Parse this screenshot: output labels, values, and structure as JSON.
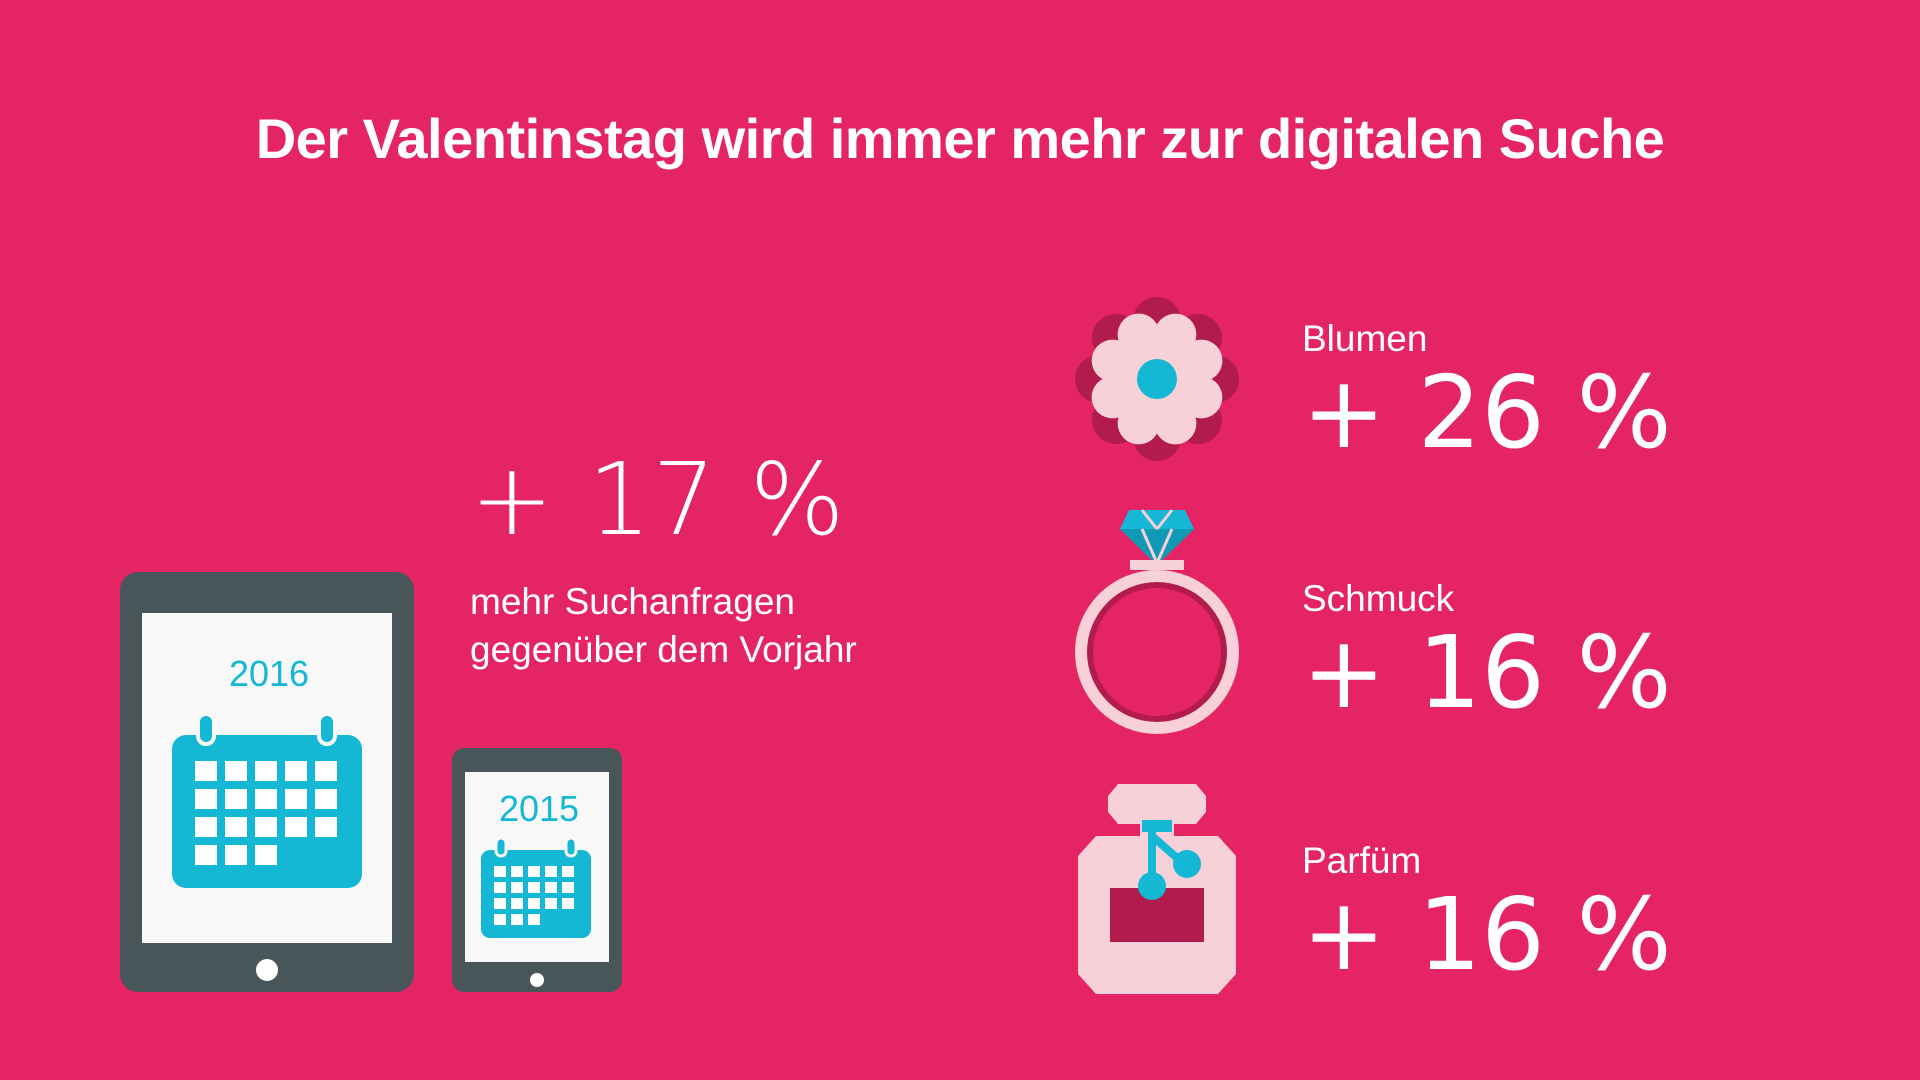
{
  "title": "Der Valentinstag wird immer mehr zur digitalen Suche",
  "colors": {
    "background": "#e52466",
    "accent_cyan": "#14b7d4",
    "device_dark": "#485559",
    "light_pink": "#f8d0d8",
    "dark_pink": "#b21b4e"
  },
  "main_stat": {
    "value": "+ 17 %",
    "description_line1": "mehr Suchanfragen",
    "description_line2": "gegenüber dem Vorjahr"
  },
  "devices": {
    "tablet_year": "2016",
    "phone_year": "2015",
    "tablet_icon": "tablet-calendar-icon",
    "phone_icon": "phone-calendar-icon"
  },
  "categories": [
    {
      "label": "Blumen",
      "value": "+ 26 %",
      "icon": "flower-icon"
    },
    {
      "label": "Schmuck",
      "value": "+ 16 %",
      "icon": "ring-icon"
    },
    {
      "label": "Parfüm",
      "value": "+ 16 %",
      "icon": "perfume-icon"
    }
  ]
}
